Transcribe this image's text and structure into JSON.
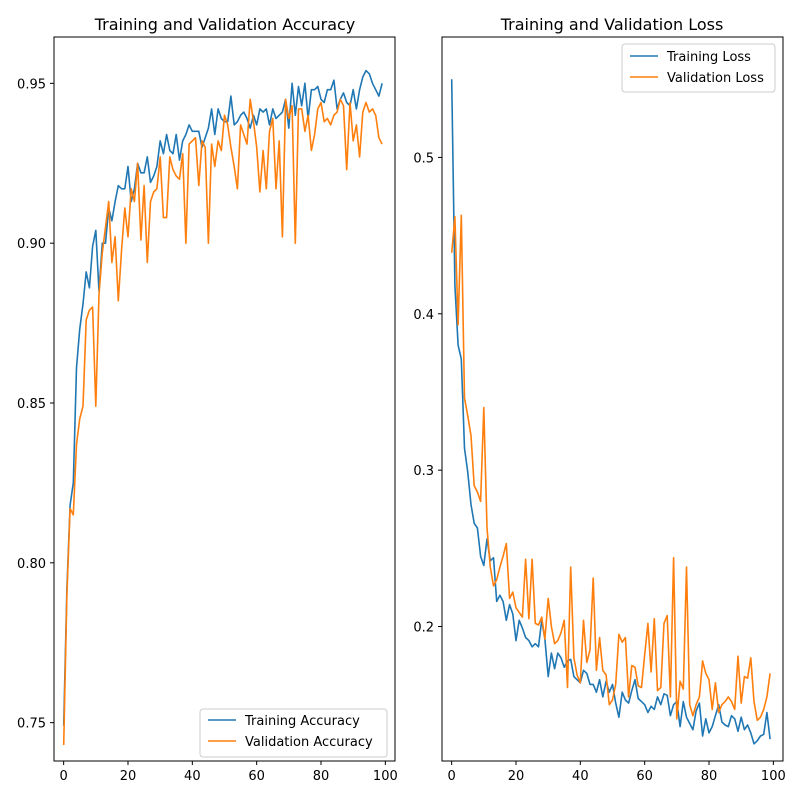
{
  "chart_data": [
    {
      "type": "line",
      "title": "Training and Validation Accuracy",
      "xlabel": "",
      "ylabel": "",
      "xlim": [
        -3,
        103
      ],
      "ylim": [
        0.738,
        0.9645
      ],
      "xticks": [
        0,
        20,
        40,
        60,
        80,
        100
      ],
      "yticks": [
        0.75,
        0.8,
        0.85,
        0.9,
        0.95
      ],
      "ytick_labels": [
        "0.75",
        "0.80",
        "0.85",
        "0.90",
        "0.95"
      ],
      "grid": false,
      "legend_position": "lower-right",
      "x": [
        0,
        1,
        2,
        3,
        4,
        5,
        6,
        7,
        8,
        9,
        10,
        11,
        12,
        13,
        14,
        15,
        16,
        17,
        18,
        19,
        20,
        21,
        22,
        23,
        24,
        25,
        26,
        27,
        28,
        29,
        30,
        31,
        32,
        33,
        34,
        35,
        36,
        37,
        38,
        39,
        40,
        41,
        42,
        43,
        44,
        45,
        46,
        47,
        48,
        49,
        50,
        51,
        52,
        53,
        54,
        55,
        56,
        57,
        58,
        59,
        60,
        61,
        62,
        63,
        64,
        65,
        66,
        67,
        68,
        69,
        70,
        71,
        72,
        73,
        74,
        75,
        76,
        77,
        78,
        79,
        80,
        81,
        82,
        83,
        84,
        85,
        86,
        87,
        88,
        89,
        90,
        91,
        92,
        93,
        94,
        95,
        96,
        97,
        98,
        99
      ],
      "series": [
        {
          "name": "Training Accuracy",
          "color": "#1f77b4",
          "values": [
            0.749,
            0.792,
            0.818,
            0.825,
            0.861,
            0.873,
            0.881,
            0.891,
            0.886,
            0.899,
            0.904,
            0.885,
            0.9,
            0.9,
            0.911,
            0.907,
            0.913,
            0.918,
            0.917,
            0.917,
            0.924,
            0.913,
            0.917,
            0.925,
            0.922,
            0.922,
            0.927,
            0.919,
            0.921,
            0.924,
            0.932,
            0.928,
            0.934,
            0.929,
            0.928,
            0.934,
            0.926,
            0.932,
            0.934,
            0.937,
            0.935,
            0.935,
            0.935,
            0.93,
            0.933,
            0.936,
            0.942,
            0.934,
            0.942,
            0.939,
            0.938,
            0.938,
            0.946,
            0.937,
            0.938,
            0.94,
            0.941,
            0.939,
            0.936,
            0.94,
            0.937,
            0.942,
            0.941,
            0.942,
            0.937,
            0.942,
            0.939,
            0.94,
            0.941,
            0.945,
            0.936,
            0.95,
            0.94,
            0.949,
            0.943,
            0.95,
            0.939,
            0.948,
            0.948,
            0.949,
            0.945,
            0.944,
            0.948,
            0.948,
            0.951,
            0.942,
            0.945,
            0.947,
            0.944,
            0.943,
            0.948,
            0.942,
            0.948,
            0.952,
            0.954,
            0.953,
            0.95,
            0.948,
            0.946,
            0.95
          ]
        },
        {
          "name": "Validation Accuracy",
          "color": "#ff7f0e",
          "values": [
            0.743,
            0.79,
            0.817,
            0.815,
            0.837,
            0.845,
            0.849,
            0.876,
            0.879,
            0.88,
            0.849,
            0.884,
            0.897,
            0.905,
            0.913,
            0.894,
            0.902,
            0.882,
            0.898,
            0.911,
            0.902,
            0.917,
            0.913,
            0.925,
            0.901,
            0.918,
            0.894,
            0.913,
            0.916,
            0.917,
            0.927,
            0.908,
            0.908,
            0.927,
            0.923,
            0.921,
            0.92,
            0.928,
            0.9,
            0.931,
            0.932,
            0.933,
            0.918,
            0.932,
            0.93,
            0.9,
            0.931,
            0.924,
            0.932,
            0.929,
            0.94,
            0.937,
            0.93,
            0.924,
            0.917,
            0.937,
            0.934,
            0.931,
            0.945,
            0.938,
            0.93,
            0.916,
            0.929,
            0.917,
            0.935,
            0.939,
            0.917,
            0.932,
            0.902,
            0.945,
            0.939,
            0.943,
            0.9,
            0.942,
            0.942,
            0.935,
            0.94,
            0.929,
            0.934,
            0.942,
            0.944,
            0.938,
            0.939,
            0.937,
            0.94,
            0.941,
            0.945,
            0.943,
            0.923,
            0.944,
            0.932,
            0.937,
            0.927,
            0.941,
            0.944,
            0.941,
            0.942,
            0.94,
            0.933,
            0.931
          ]
        }
      ]
    },
    {
      "type": "line",
      "title": "Training and Validation Loss",
      "xlabel": "",
      "ylabel": "",
      "xlim": [
        -3,
        103
      ],
      "ylim": [
        0.114,
        0.577
      ],
      "xticks": [
        0,
        20,
        40,
        60,
        80,
        100
      ],
      "yticks": [
        0.2,
        0.3,
        0.4,
        0.5
      ],
      "ytick_labels": [
        "0.2",
        "0.3",
        "0.4",
        "0.5"
      ],
      "grid": false,
      "legend_position": "upper-right",
      "x": [
        0,
        1,
        2,
        3,
        4,
        5,
        6,
        7,
        8,
        9,
        10,
        11,
        12,
        13,
        14,
        15,
        16,
        17,
        18,
        19,
        20,
        21,
        22,
        23,
        24,
        25,
        26,
        27,
        28,
        29,
        30,
        31,
        32,
        33,
        34,
        35,
        36,
        37,
        38,
        39,
        40,
        41,
        42,
        43,
        44,
        45,
        46,
        47,
        48,
        49,
        50,
        51,
        52,
        53,
        54,
        55,
        56,
        57,
        58,
        59,
        60,
        61,
        62,
        63,
        64,
        65,
        66,
        67,
        68,
        69,
        70,
        71,
        72,
        73,
        74,
        75,
        76,
        77,
        78,
        79,
        80,
        81,
        82,
        83,
        84,
        85,
        86,
        87,
        88,
        89,
        90,
        91,
        92,
        93,
        94,
        95,
        96,
        97,
        98,
        99
      ],
      "series": [
        {
          "name": "Training Loss",
          "color": "#1f77b4",
          "values": [
            0.55,
            0.418,
            0.38,
            0.371,
            0.314,
            0.299,
            0.278,
            0.266,
            0.263,
            0.245,
            0.239,
            0.256,
            0.242,
            0.244,
            0.216,
            0.22,
            0.216,
            0.204,
            0.214,
            0.208,
            0.191,
            0.204,
            0.199,
            0.193,
            0.191,
            0.187,
            0.189,
            0.187,
            0.204,
            0.192,
            0.168,
            0.183,
            0.173,
            0.183,
            0.18,
            0.174,
            0.178,
            0.179,
            0.168,
            0.166,
            0.164,
            0.172,
            0.17,
            0.163,
            0.163,
            0.158,
            0.166,
            0.155,
            0.165,
            0.158,
            0.163,
            0.151,
            0.142,
            0.158,
            0.153,
            0.151,
            0.159,
            0.166,
            0.154,
            0.152,
            0.15,
            0.145,
            0.149,
            0.147,
            0.155,
            0.15,
            0.157,
            0.156,
            0.143,
            0.15,
            0.152,
            0.136,
            0.152,
            0.142,
            0.138,
            0.134,
            0.146,
            0.151,
            0.13,
            0.141,
            0.132,
            0.136,
            0.143,
            0.15,
            0.139,
            0.137,
            0.136,
            0.143,
            0.141,
            0.133,
            0.142,
            0.134,
            0.137,
            0.132,
            0.125,
            0.127,
            0.13,
            0.131,
            0.145,
            0.128
          ]
        },
        {
          "name": "Validation Loss",
          "color": "#ff7f0e",
          "values": [
            0.439,
            0.462,
            0.393,
            0.463,
            0.346,
            0.335,
            0.322,
            0.29,
            0.286,
            0.28,
            0.34,
            0.263,
            0.238,
            0.226,
            0.23,
            0.238,
            0.245,
            0.253,
            0.218,
            0.222,
            0.212,
            0.209,
            0.206,
            0.243,
            0.205,
            0.243,
            0.202,
            0.201,
            0.206,
            0.192,
            0.218,
            0.2,
            0.189,
            0.191,
            0.196,
            0.204,
            0.161,
            0.238,
            0.18,
            0.169,
            0.164,
            0.204,
            0.177,
            0.185,
            0.231,
            0.172,
            0.193,
            0.172,
            0.169,
            0.15,
            0.153,
            0.163,
            0.195,
            0.19,
            0.193,
            0.155,
            0.175,
            0.174,
            0.162,
            0.161,
            0.182,
            0.202,
            0.171,
            0.205,
            0.159,
            0.161,
            0.202,
            0.207,
            0.155,
            0.244,
            0.141,
            0.165,
            0.16,
            0.238,
            0.15,
            0.143,
            0.15,
            0.155,
            0.178,
            0.17,
            0.166,
            0.147,
            0.164,
            0.145,
            0.15,
            0.152,
            0.155,
            0.152,
            0.147,
            0.181,
            0.151,
            0.168,
            0.167,
            0.18,
            0.152,
            0.14,
            0.142,
            0.147,
            0.155,
            0.17
          ]
        }
      ]
    }
  ]
}
